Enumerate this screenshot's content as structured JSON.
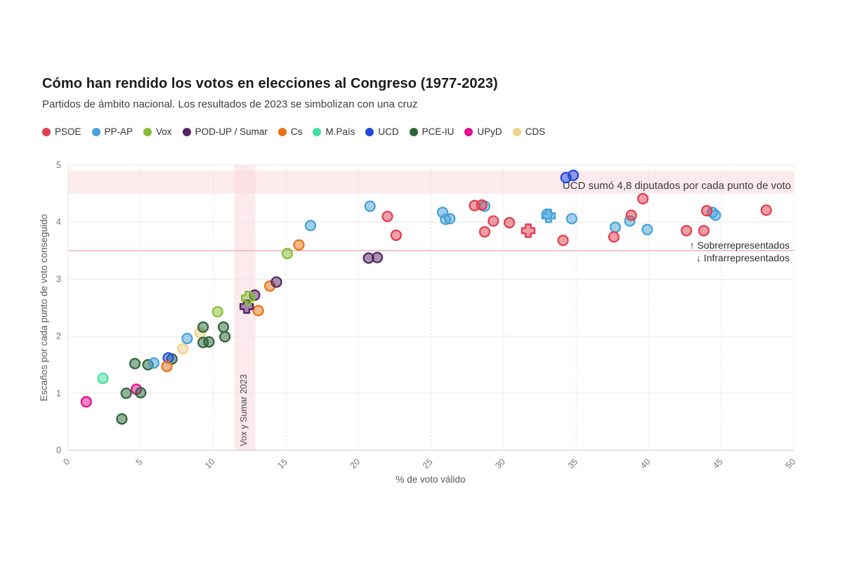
{
  "header": {
    "title": "Cómo han rendido los votos en elecciones al Congreso (1977-2023)",
    "subtitle": "Partidos de ámbito nacional. Los resultados de 2023 se simbolizan con una cruz"
  },
  "chart_data": {
    "type": "scatter",
    "xlabel": "% de voto válido",
    "ylabel": "Escaños por cada punto de voto conseguido",
    "xlim": [
      0,
      50
    ],
    "ylim": [
      0,
      5
    ],
    "xticks": [
      0,
      5,
      10,
      15,
      20,
      25,
      30,
      35,
      40,
      45,
      50
    ],
    "yticks": [
      0,
      1,
      2,
      3,
      4,
      5
    ],
    "grid": {
      "vertical": "dashed",
      "horizontal": "solid"
    },
    "parity_line_y": 3.5,
    "highlight_band_y": {
      "from": 4.5,
      "to": 4.9,
      "label": "UCD sumó 4,8 diputados por cada punto de voto"
    },
    "highlight_band_x": {
      "from": 11.45,
      "to": 12.9,
      "label": "Vox y Sumar 2023"
    },
    "annotations": {
      "over": "↑ Sobrerrepresentados",
      "under": "↓ Infrarrepresentados"
    },
    "cross_note": "Los resultados de 2023 se simbolizan con una cruz",
    "series": [
      {
        "name": "PSOE",
        "color": "#e23d4d",
        "points": [
          [
            22.0,
            4.1
          ],
          [
            22.6,
            3.77
          ],
          [
            28.0,
            4.29
          ],
          [
            28.5,
            4.3
          ],
          [
            28.7,
            3.83
          ],
          [
            29.3,
            4.02
          ],
          [
            30.4,
            3.99
          ],
          [
            34.1,
            3.68
          ],
          [
            37.6,
            3.74
          ],
          [
            38.8,
            4.12
          ],
          [
            39.6,
            4.41
          ],
          [
            42.6,
            3.85
          ],
          [
            43.8,
            3.85
          ],
          [
            44.0,
            4.2
          ],
          [
            48.1,
            4.21
          ]
        ],
        "cross_2023": [
          31.7,
          3.85
        ]
      },
      {
        "name": "PP-AP",
        "color": "#45a1d8",
        "points": [
          [
            5.9,
            1.53
          ],
          [
            8.2,
            1.96
          ],
          [
            16.7,
            3.94
          ],
          [
            20.8,
            4.28
          ],
          [
            25.8,
            4.17
          ],
          [
            26.0,
            4.05
          ],
          [
            26.3,
            4.06
          ],
          [
            28.7,
            4.28
          ],
          [
            33.0,
            4.14
          ],
          [
            34.7,
            4.06
          ],
          [
            37.7,
            3.91
          ],
          [
            38.7,
            4.02
          ],
          [
            39.9,
            3.87
          ],
          [
            44.4,
            4.17
          ],
          [
            44.6,
            4.12
          ]
        ],
        "cross_2023": [
          33.1,
          4.11
        ]
      },
      {
        "name": "Vox",
        "color": "#86bd35",
        "points": [
          [
            10.3,
            2.43
          ],
          [
            15.1,
            3.45
          ]
        ],
        "cross_2023": [
          12.4,
          2.67
        ]
      },
      {
        "name": "POD-UP / Sumar",
        "color": "#512562",
        "points": [
          [
            12.85,
            2.72
          ],
          [
            14.35,
            2.95
          ],
          [
            20.7,
            3.37
          ],
          [
            21.3,
            3.38
          ]
        ],
        "cross_2023": [
          12.3,
          2.52
        ]
      },
      {
        "name": "Cs",
        "color": "#ec6f12",
        "points": [
          [
            6.8,
            1.47
          ],
          [
            13.1,
            2.45
          ],
          [
            13.9,
            2.88
          ],
          [
            15.9,
            3.6
          ]
        ],
        "cross_2023": null
      },
      {
        "name": "M.País",
        "color": "#3fe0a0",
        "points": [
          [
            2.4,
            1.26
          ]
        ],
        "cross_2023": null
      },
      {
        "name": "UCD",
        "color": "#2049e0",
        "points": [
          [
            6.9,
            1.62
          ],
          [
            34.3,
            4.78
          ],
          [
            34.8,
            4.82
          ]
        ],
        "cross_2023": null
      },
      {
        "name": "PCE-IU",
        "color": "#2c6637",
        "points": [
          [
            3.7,
            0.55
          ],
          [
            4.0,
            1.0
          ],
          [
            4.6,
            1.52
          ],
          [
            5.0,
            1.01
          ],
          [
            5.5,
            1.5
          ],
          [
            7.15,
            1.6
          ],
          [
            9.3,
            1.89
          ],
          [
            9.3,
            2.16
          ],
          [
            9.7,
            1.9
          ],
          [
            10.7,
            2.16
          ],
          [
            10.8,
            1.99
          ]
        ],
        "cross_2023": null
      },
      {
        "name": "UPyD",
        "color": "#e50c8d",
        "points": [
          [
            1.25,
            0.85
          ],
          [
            4.7,
            1.07
          ]
        ],
        "cross_2023": null
      },
      {
        "name": "CDS",
        "color": "#f0d18a",
        "points": [
          [
            7.9,
            1.78
          ],
          [
            9.1,
            2.06
          ]
        ],
        "cross_2023": null
      }
    ]
  },
  "colors": {
    "band_pink": "#f9d5db",
    "parity_line": "#f1b3bd",
    "grid": "#e8e8e8",
    "grid_dashed": "#dcdcdc",
    "axis_line": "#cfcfcf",
    "tick_text": "#767676",
    "axis_title_text": "#5a5a5a",
    "annotation_text": "#3c3c3c"
  }
}
